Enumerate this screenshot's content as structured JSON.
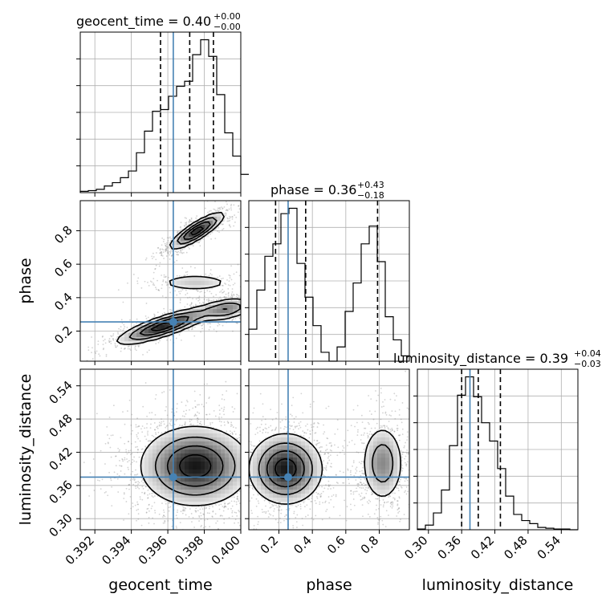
{
  "chart_data": {
    "type": "corner",
    "parameters": [
      "geocent_time",
      "phase",
      "luminosity_distance"
    ],
    "titles": [
      {
        "param": "geocent_time",
        "text": "geocent_time = 0.40",
        "sup": "+0.00",
        "sub": "−0.00"
      },
      {
        "param": "phase",
        "text": "phase = 0.36",
        "sup": "+0.43",
        "sub": "−0.18"
      },
      {
        "param": "luminosity_distance",
        "text": "luminosity_distance = 0.39",
        "sup": "+0.04",
        "sub": "−0.03"
      }
    ],
    "axis_labels": {
      "x": [
        "geocent_time",
        "phase",
        "luminosity_distance"
      ],
      "y": [
        "phase",
        "luminosity_distance"
      ]
    },
    "ticks": {
      "geocent_time": {
        "values": [
          0.392,
          0.394,
          0.396,
          0.398,
          0.4
        ],
        "labels": [
          "0.392",
          "0.394",
          "0.396",
          "0.398",
          "0.400"
        ]
      },
      "phase_x": {
        "values": [
          0.2,
          0.4,
          0.6,
          0.8
        ],
        "labels": [
          "0.2",
          "0.4",
          "0.6",
          "0.8"
        ]
      },
      "phase_y": {
        "values": [
          0.2,
          0.4,
          0.6,
          0.8
        ],
        "labels": [
          "0.2",
          "0.4",
          "0.6",
          "0.8"
        ]
      },
      "luminosity_distance": {
        "values": [
          0.3,
          0.36,
          0.42,
          0.48,
          0.54
        ],
        "labels": [
          "0.30",
          "0.36",
          "0.42",
          "0.48",
          "0.54"
        ]
      }
    },
    "ranges": {
      "geocent_time": [
        0.3912,
        0.4
      ],
      "phase": [
        0.02,
        0.98
      ],
      "luminosity_distance": [
        0.28,
        0.57
      ]
    },
    "truths": {
      "geocent_time": 0.3963,
      "phase": 0.255,
      "luminosity_distance": 0.375
    },
    "quantiles": {
      "geocent_time": [
        0.3956,
        0.3972,
        0.3985
      ],
      "phase": [
        0.18,
        0.36,
        0.79
      ],
      "luminosity_distance": [
        0.36,
        0.39,
        0.43
      ]
    },
    "histograms": {
      "geocent_time": {
        "edges_start": 0.3912,
        "bin_width": 0.00044,
        "counts": [
          0.8,
          1.2,
          2,
          4,
          6,
          9,
          13,
          24,
          37,
          49,
          50,
          58,
          64,
          67,
          83,
          92,
          82,
          59,
          36,
          22,
          11
        ]
      },
      "phase": {
        "edges_start": 0.02,
        "bin_width": 0.048,
        "counts": [
          18,
          40,
          59,
          66,
          83,
          86,
          55,
          36,
          20,
          5,
          0,
          8,
          28,
          44,
          66,
          76,
          56,
          25,
          12,
          3
        ]
      },
      "luminosity_distance": {
        "edges_start": 0.28,
        "bin_width": 0.0145,
        "counts": [
          0.5,
          3,
          11,
          26,
          55,
          88,
          100,
          87,
          70,
          58,
          40,
          22,
          10,
          6,
          4,
          1.5,
          1,
          0.5,
          0.5,
          0
        ]
      }
    },
    "density_modes": [
      {
        "panel": "phase_vs_geocent_time",
        "clusters": [
          {
            "x": 0.3976,
            "y": 0.8,
            "sx": 0.00075,
            "sy": 0.055,
            "rho": 0.85,
            "w": 0.35
          },
          {
            "x": 0.3958,
            "y": 0.23,
            "sx": 0.0013,
            "sy": 0.055,
            "rho": 0.82,
            "w": 0.35
          },
          {
            "x": 0.3992,
            "y": 0.33,
            "sx": 0.0008,
            "sy": 0.035,
            "rho": 0.4,
            "w": 0.2
          },
          {
            "x": 0.3975,
            "y": 0.49,
            "sx": 0.0012,
            "sy": 0.03,
            "rho": 0.0,
            "w": 0.1
          }
        ]
      },
      {
        "panel": "luminosity_distance_vs_geocent_time",
        "clusters": [
          {
            "x": 0.3975,
            "y": 0.395,
            "sx": 0.0015,
            "sy": 0.036,
            "rho": 0.0,
            "w": 1.0
          }
        ]
      },
      {
        "panel": "luminosity_distance_vs_phase",
        "clusters": [
          {
            "x": 0.24,
            "y": 0.39,
            "sx": 0.11,
            "sy": 0.032,
            "rho": 0.0,
            "w": 0.55
          },
          {
            "x": 0.82,
            "y": 0.4,
            "sx": 0.065,
            "sy": 0.036,
            "rho": 0.0,
            "w": 0.3
          }
        ]
      }
    ],
    "colors": {
      "truth": "#4682b4",
      "contour": "#000000",
      "points": "#808080",
      "grid": "#b0b0b0"
    },
    "grid": true
  }
}
